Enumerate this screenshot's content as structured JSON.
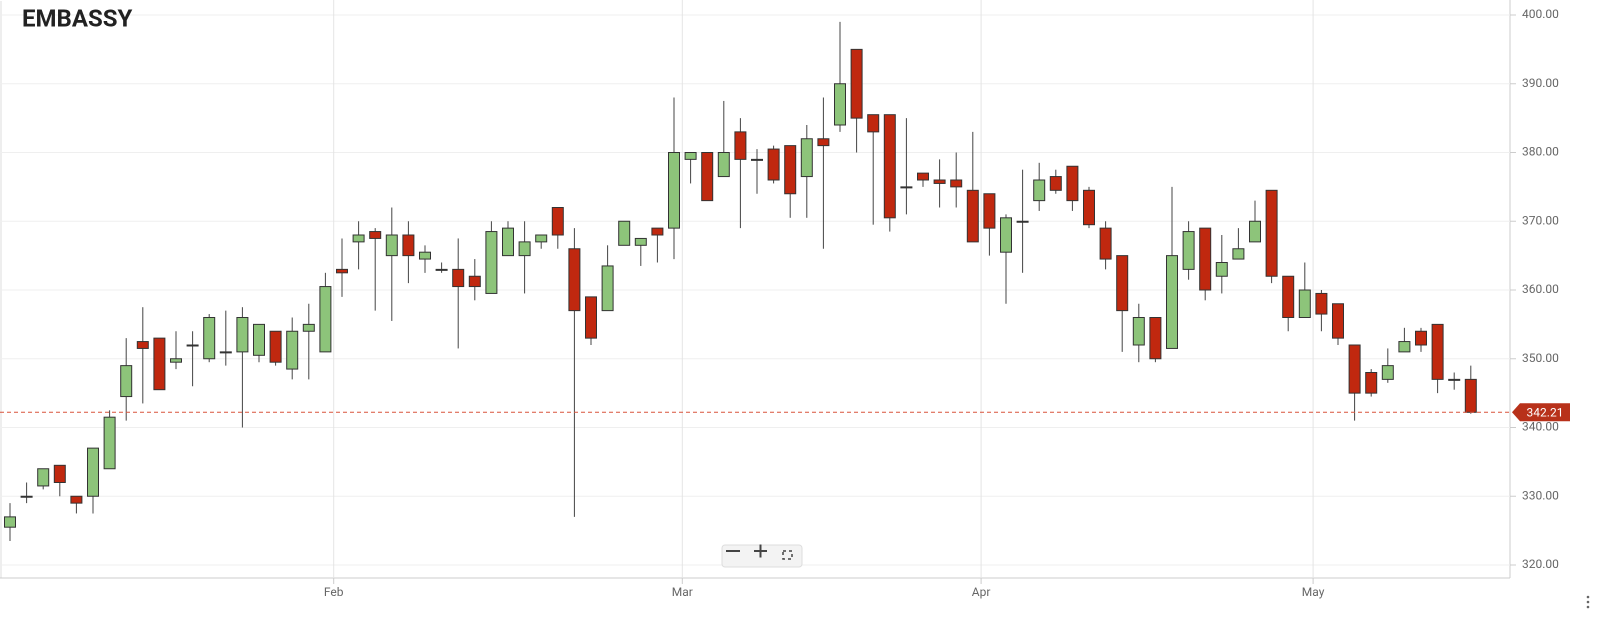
{
  "chart_data": {
    "type": "candlestick",
    "title": "EMBASSY",
    "categories": [
      null,
      null,
      null,
      null,
      null,
      null,
      null,
      null,
      null,
      null,
      null,
      null,
      null,
      null,
      null,
      null,
      null,
      null,
      null,
      null,
      "Feb",
      null,
      null,
      null,
      null,
      null,
      null,
      null,
      null,
      null,
      null,
      null,
      null,
      null,
      null,
      null,
      null,
      null,
      null,
      null,
      null,
      "Mar",
      null,
      null,
      null,
      null,
      null,
      null,
      null,
      null,
      null,
      null,
      null,
      null,
      null,
      null,
      null,
      null,
      null,
      "Apr",
      null,
      null,
      null,
      null,
      null,
      null,
      null,
      null,
      null,
      null,
      null,
      null,
      null,
      null,
      null,
      null,
      null,
      null,
      null,
      "May",
      null,
      null,
      null,
      null,
      null,
      null,
      null,
      null,
      null
    ],
    "open": [
      325.5,
      330,
      331.5,
      334.5,
      330,
      330,
      334,
      344.5,
      352.5,
      353,
      349.5,
      352,
      350,
      351,
      351,
      350.5,
      354,
      348.5,
      354,
      351,
      363,
      367,
      368.5,
      365,
      368,
      364.5,
      363,
      363,
      362,
      359.5,
      365,
      365,
      367,
      372,
      366,
      359,
      357,
      366.5,
      366.5,
      369,
      369,
      379,
      380,
      376.5,
      383,
      379,
      380.5,
      381,
      376.5,
      382,
      384,
      395,
      385.5,
      385.5,
      375,
      377,
      376,
      376,
      374.5,
      374,
      365.5,
      370,
      373,
      376.5,
      378,
      374.5,
      369,
      365,
      352,
      356,
      351.5,
      363,
      369,
      362,
      364.5,
      367,
      374.5,
      362,
      356,
      359.5,
      358,
      352,
      348,
      347,
      351,
      354,
      355,
      347,
      347
    ],
    "high": [
      329,
      332,
      334,
      334.5,
      330,
      337,
      342.5,
      353,
      357.5,
      353,
      354,
      354,
      356.5,
      357,
      357.5,
      355,
      354,
      356,
      358,
      362.5,
      367.5,
      370,
      369,
      372,
      370,
      366.5,
      364,
      367.5,
      364.5,
      370,
      370,
      370,
      368,
      372,
      369,
      359,
      366.5,
      370,
      367.5,
      369,
      388,
      380,
      380,
      387.5,
      385,
      380.5,
      381,
      381,
      384,
      388,
      399,
      395,
      385.5,
      385.5,
      385,
      377,
      379,
      380,
      383,
      374,
      371,
      377.5,
      378.5,
      377.5,
      378,
      375,
      370,
      365,
      358,
      356,
      375,
      370,
      369,
      368,
      369,
      373,
      374.5,
      362,
      364,
      360,
      358,
      352,
      348.5,
      351.5,
      354.5,
      354.5,
      355,
      348,
      349
    ],
    "low": [
      323.5,
      329,
      331,
      330,
      327.5,
      327.5,
      334,
      341,
      343.5,
      345.5,
      348.5,
      346,
      349.5,
      349,
      340,
      349.5,
      349,
      347,
      347,
      351,
      359,
      363,
      357,
      355.5,
      361,
      362.5,
      362.5,
      351.5,
      358.5,
      359.5,
      365,
      359.5,
      366,
      366,
      327,
      352,
      357,
      366.5,
      363.5,
      364,
      364.5,
      375.5,
      373,
      376.5,
      369,
      374,
      375.5,
      370.5,
      370.5,
      366,
      383,
      380,
      369.5,
      368.5,
      371,
      375,
      372,
      372,
      367,
      365,
      358,
      362.5,
      371.5,
      374,
      371.5,
      369,
      363,
      351,
      349.5,
      349.5,
      351.5,
      361.5,
      358.5,
      359.5,
      364.5,
      367,
      361,
      354,
      356,
      354,
      352,
      341,
      344.5,
      346.5,
      351,
      351,
      345,
      345.5,
      342
    ],
    "close": [
      327,
      330,
      334,
      332,
      329,
      337,
      341.5,
      349,
      351.5,
      345.5,
      350,
      352,
      356,
      351,
      356,
      355,
      349.5,
      354,
      355,
      360.5,
      362.5,
      368,
      367.5,
      368,
      365,
      365.5,
      363,
      360.5,
      360.5,
      368.5,
      369,
      367,
      368,
      368,
      357,
      353,
      363.5,
      370,
      367.5,
      368,
      380,
      380,
      373,
      380,
      379,
      379,
      376,
      374,
      382,
      381,
      390,
      385,
      383,
      370.5,
      375,
      376,
      375.5,
      375,
      367,
      369,
      370.5,
      370,
      376,
      374.5,
      373,
      369.5,
      364.5,
      357,
      356,
      350,
      365,
      368.5,
      360,
      364,
      366,
      370,
      362,
      356,
      360,
      356.5,
      353,
      345,
      345,
      349,
      352.5,
      352,
      347,
      347,
      342.21
    ],
    "up_color": "#8dc47a",
    "down_color": "#c0280f",
    "last_price": 342.21,
    "last_price_color": "#d9533c",
    "ylim": [
      320,
      400
    ],
    "yticks": [
      {
        "value": 320,
        "label": "320.00"
      },
      {
        "value": 330,
        "label": "330.00"
      },
      {
        "value": 340,
        "label": "340.00"
      },
      {
        "value": 350,
        "label": "350.00"
      },
      {
        "value": 360,
        "label": "360.00"
      },
      {
        "value": 370,
        "label": "370.00"
      },
      {
        "value": 380,
        "label": "380.00"
      },
      {
        "value": 390,
        "label": "390.00"
      },
      {
        "value": 400,
        "label": "400.00"
      }
    ],
    "grid": true
  }
}
